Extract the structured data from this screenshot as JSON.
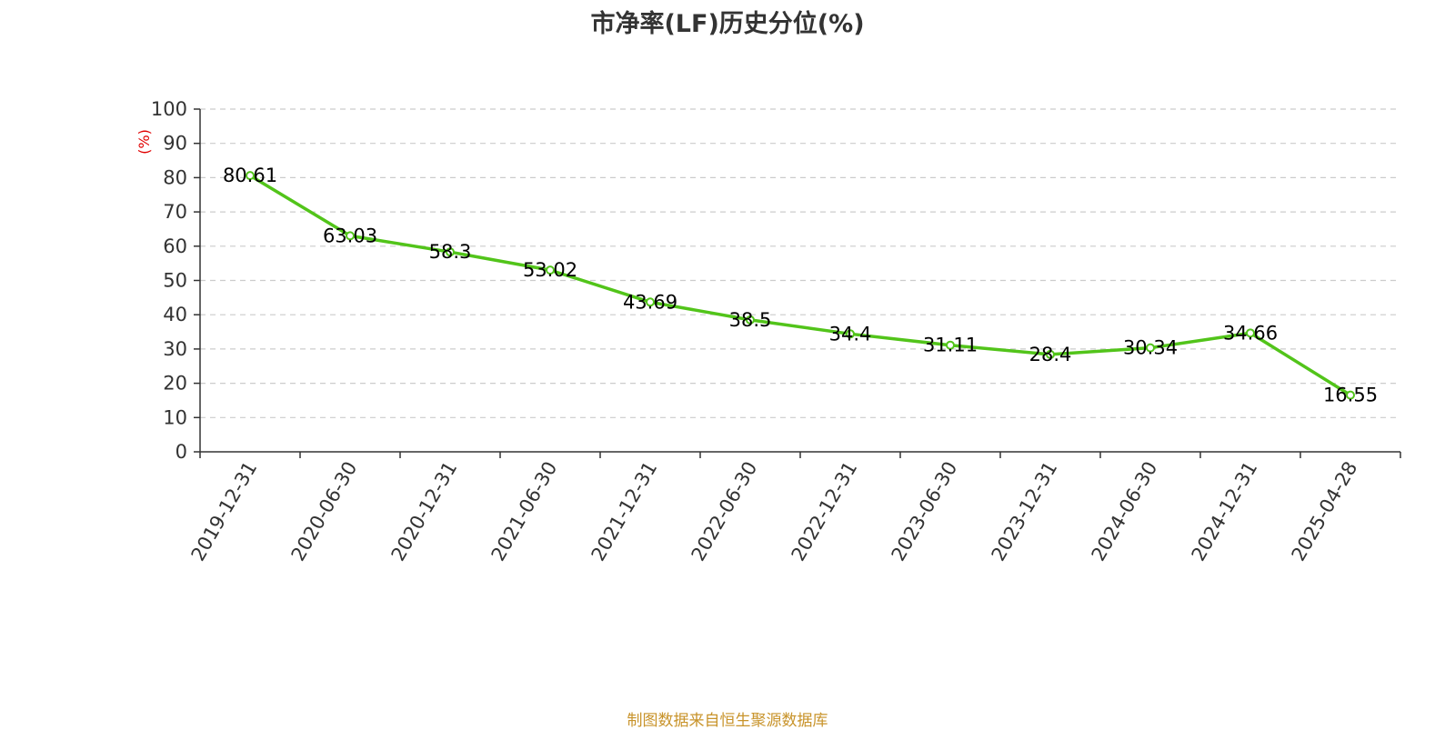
{
  "title": "市净率(LF)历史分位(%)",
  "source_note": "制图数据来自恒生聚源数据库",
  "colors": {
    "line": "#52c41a",
    "axis": "#333333",
    "grid": "#cccccc",
    "unit": "#e00000",
    "source": "#c8932a"
  },
  "chart_data": {
    "type": "line",
    "title": "市净率(LF)历史分位(%)",
    "ylabel": "(%)",
    "xlabel": "",
    "ylim": [
      0,
      100
    ],
    "yticks": [
      0,
      10,
      20,
      30,
      40,
      50,
      60,
      70,
      80,
      90,
      100
    ],
    "grid": true,
    "categories": [
      "2019-12-31",
      "2020-06-30",
      "2020-12-31",
      "2021-06-30",
      "2021-12-31",
      "2022-06-30",
      "2022-12-31",
      "2023-06-30",
      "2023-12-31",
      "2024-06-30",
      "2024-12-31",
      "2025-04-28"
    ],
    "series": [
      {
        "values": [
          80.61,
          63.03,
          58.3,
          53.02,
          43.69,
          38.5,
          34.4,
          31.11,
          28.4,
          30.34,
          34.66,
          16.55
        ]
      }
    ]
  }
}
